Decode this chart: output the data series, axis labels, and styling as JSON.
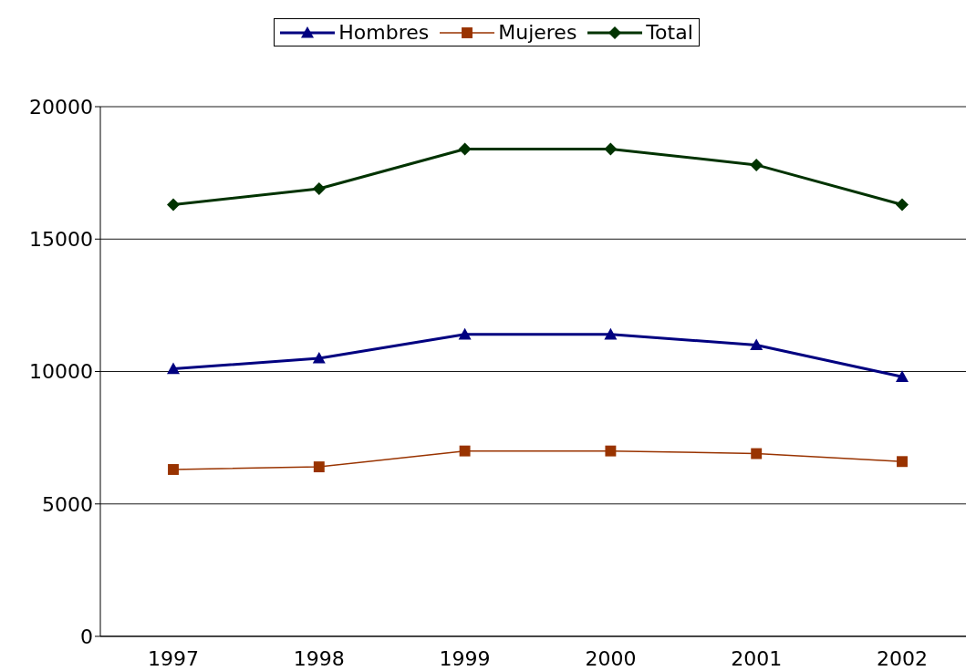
{
  "chart_data": {
    "type": "line",
    "categories": [
      "1997",
      "1998",
      "1999",
      "2000",
      "2001",
      "2002"
    ],
    "series": [
      {
        "name": "Hombres",
        "color": "#000080",
        "marker": "triangle",
        "values": [
          10100,
          10500,
          11400,
          11400,
          11000,
          9800
        ]
      },
      {
        "name": "Mujeres",
        "color": "#993300",
        "marker": "square",
        "values": [
          6300,
          6400,
          7000,
          7000,
          6900,
          6600
        ]
      },
      {
        "name": "Total",
        "color": "#003300",
        "marker": "diamond",
        "values": [
          16300,
          16900,
          18400,
          18400,
          17800,
          16300
        ]
      }
    ],
    "ylim": [
      0,
      20000
    ],
    "yticks": [
      0,
      5000,
      10000,
      15000,
      20000
    ],
    "grid": "y",
    "legend": "top",
    "line_style": "solid"
  }
}
